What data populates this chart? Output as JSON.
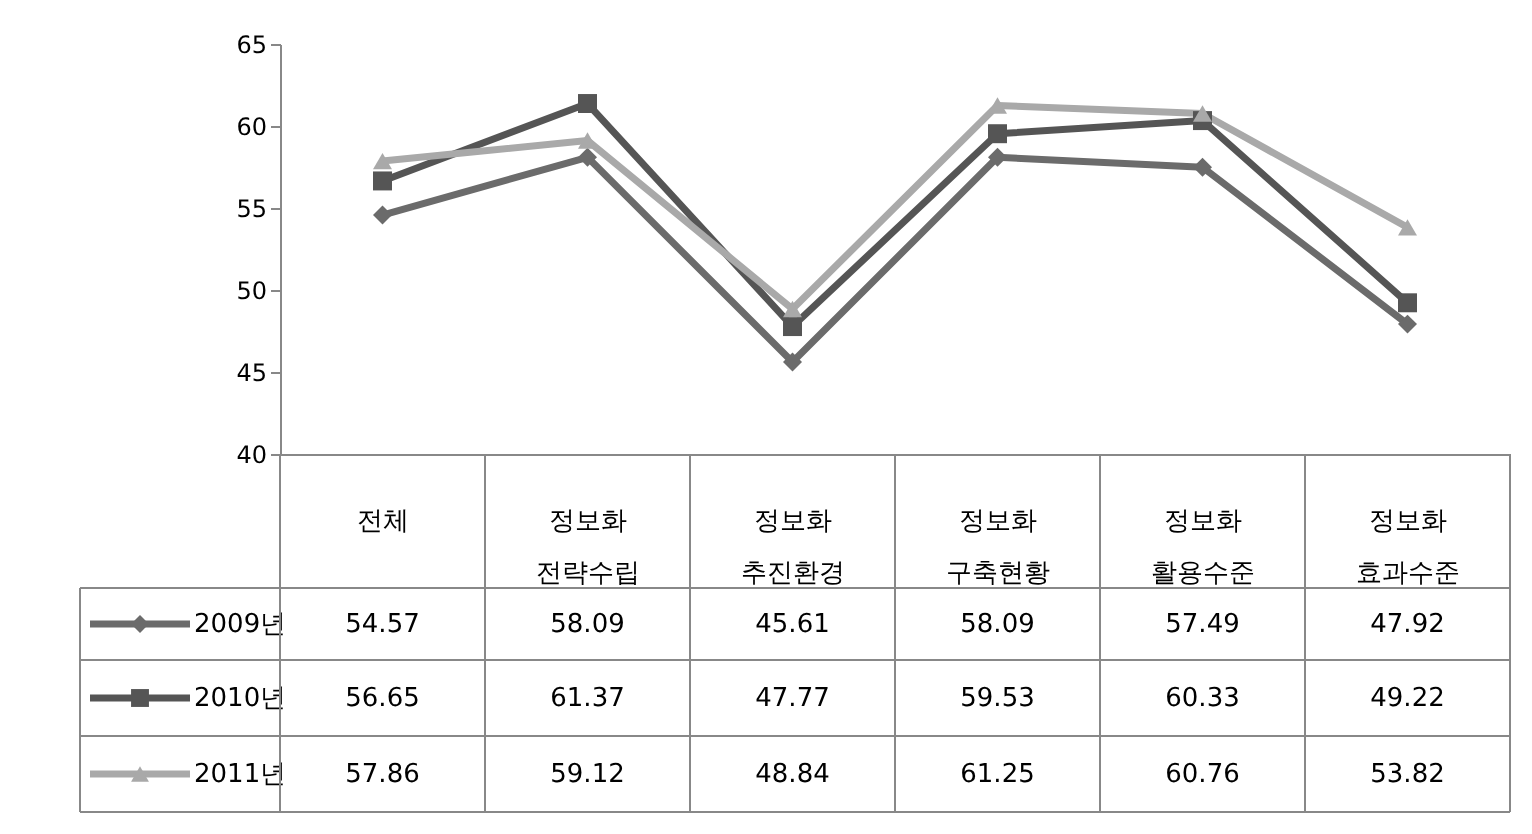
{
  "chart_data": {
    "type": "line",
    "categories": [
      "전체",
      "정보화 전략수립",
      "정보화 추진환경",
      "정보화 구축현황",
      "정보화 활용수준",
      "정보화 효과수준"
    ],
    "series": [
      {
        "name": "2009년",
        "color": "#6b6b6b",
        "marker": "diamond",
        "values": [
          54.57,
          58.09,
          45.61,
          58.09,
          57.49,
          47.92
        ]
      },
      {
        "name": "2010년",
        "color": "#555555",
        "marker": "square",
        "values": [
          56.65,
          61.37,
          47.77,
          59.53,
          60.33,
          49.22
        ]
      },
      {
        "name": "2011년",
        "color": "#a9a9a9",
        "marker": "triangle",
        "values": [
          57.86,
          59.12,
          48.84,
          61.25,
          60.76,
          53.82
        ]
      }
    ],
    "ylim": [
      40,
      65
    ],
    "yticks": [
      40,
      45,
      50,
      55,
      60,
      65
    ],
    "grid": false,
    "legend": "bottom left",
    "data_labels": true,
    "line_style": "solid"
  }
}
